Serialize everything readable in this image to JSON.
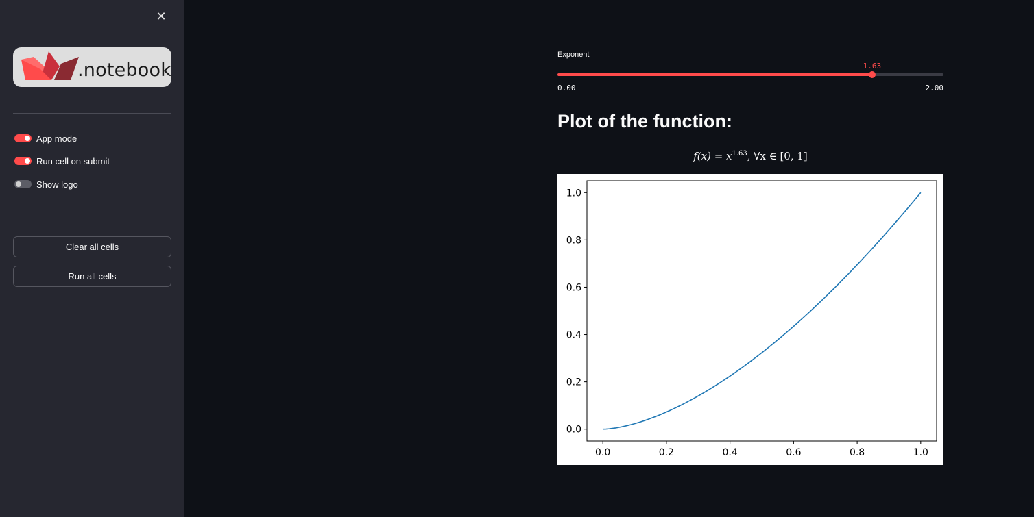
{
  "sidebar": {
    "logo_text": ".notebook",
    "toggles": [
      {
        "label": "App mode",
        "on": true
      },
      {
        "label": "Run cell on submit",
        "on": true
      },
      {
        "label": "Show logo",
        "on": false
      }
    ],
    "buttons": {
      "clear_all": "Clear all cells",
      "run_all": "Run all cells"
    }
  },
  "slider": {
    "label": "Exponent",
    "value": "1.63",
    "min": "0.00",
    "max": "2.00",
    "fraction": 0.815
  },
  "main": {
    "heading": "Plot of the function:",
    "formula": {
      "lhs": "f(x) = x",
      "exponent": "1.63",
      "rhs": ",  ∀x ∈ [0, 1]"
    }
  },
  "colors": {
    "accent": "#ff4b4b",
    "line": "#1f77b4"
  },
  "chart_data": {
    "type": "line",
    "function": "x^1.63",
    "exponent": 1.63,
    "x_range": [
      0,
      1
    ],
    "xlim": [
      -0.05,
      1.05
    ],
    "ylim": [
      -0.05,
      1.05
    ],
    "x_ticks": [
      "0.0",
      "0.2",
      "0.4",
      "0.6",
      "0.8",
      "1.0"
    ],
    "y_ticks": [
      "0.0",
      "0.2",
      "0.4",
      "0.6",
      "0.8",
      "1.0"
    ],
    "series": [
      {
        "x": [
          0.0,
          0.1,
          0.2,
          0.3,
          0.4,
          0.5,
          0.6,
          0.7,
          0.8,
          0.9,
          1.0
        ],
        "y": [
          0.0,
          0.023,
          0.073,
          0.141,
          0.224,
          0.323,
          0.435,
          0.559,
          0.695,
          0.842,
          1.0
        ]
      }
    ],
    "title": "",
    "xlabel": "",
    "ylabel": "",
    "legend": false,
    "grid": false
  }
}
